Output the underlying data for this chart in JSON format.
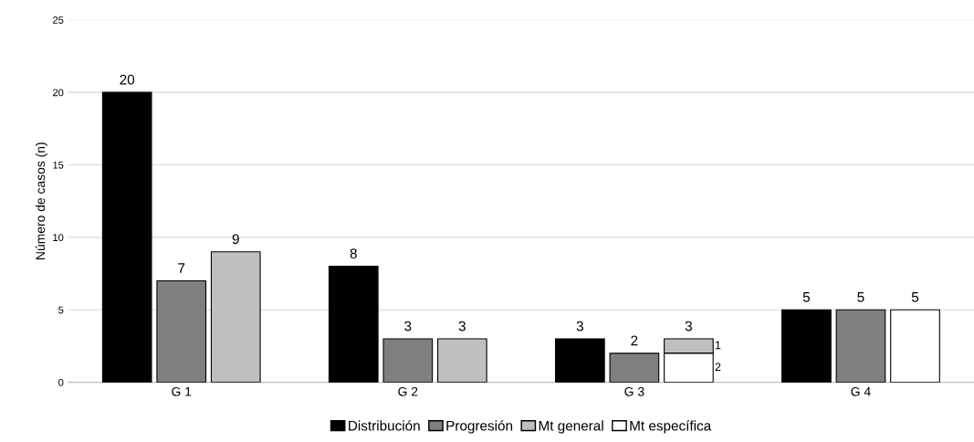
{
  "chart_data": {
    "type": "bar",
    "ylabel": "Número de casos (n)",
    "categories": [
      "G 1",
      "G 2",
      "G 3",
      "G 4"
    ],
    "series": [
      {
        "name": "Distribución",
        "color": "#000000",
        "values": [
          20,
          8,
          3,
          5
        ],
        "value_labels": [
          "20",
          "8",
          "3",
          "5"
        ]
      },
      {
        "name": "Progresión",
        "color": "#7f7f7f",
        "values": [
          7,
          3,
          2,
          5
        ],
        "value_labels": [
          "7",
          "3",
          "2",
          "5"
        ]
      },
      {
        "name": "Mt general",
        "color": "#bfbfbf",
        "values": [
          9,
          3,
          1,
          null
        ],
        "base": [
          0,
          0,
          2,
          null
        ],
        "value_labels": [
          "9",
          "3",
          "1",
          null
        ]
      },
      {
        "name": "Mt específica",
        "color": "#ffffff",
        "values": [
          null,
          null,
          2,
          5
        ],
        "value_labels": [
          null,
          null,
          "2",
          "5"
        ]
      }
    ],
    "annotations": [
      "3"
    ],
    "ylim": [
      0,
      25
    ],
    "yticks": [
      0,
      5,
      10,
      15,
      20,
      25
    ],
    "grid": "y",
    "legend": "bottom"
  }
}
